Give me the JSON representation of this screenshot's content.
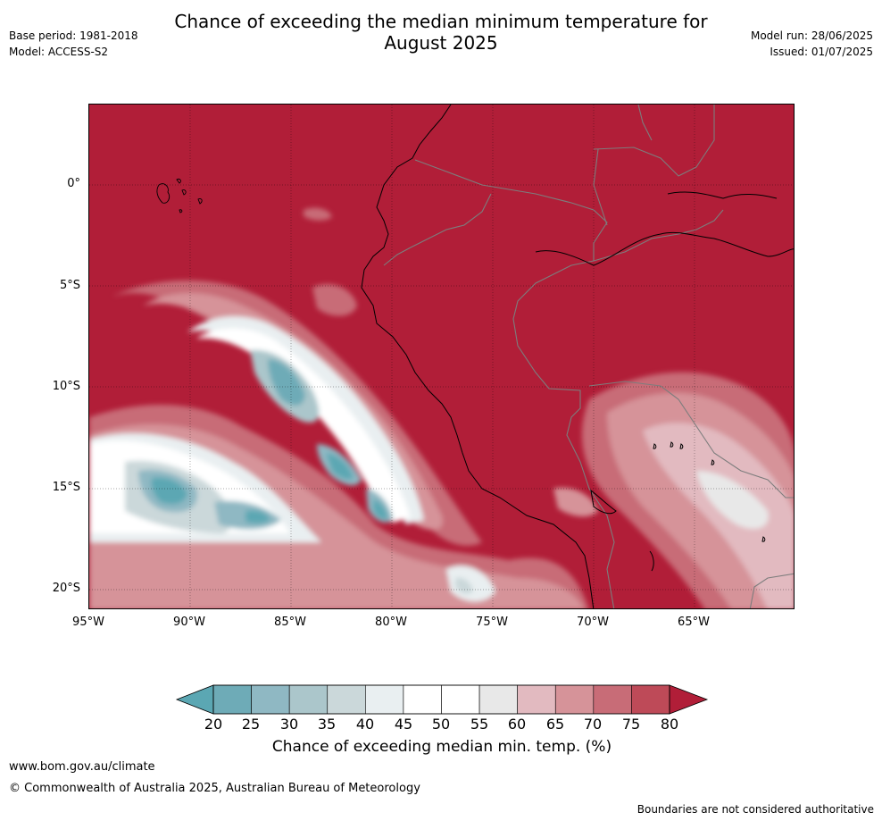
{
  "title_line1": "Chance of exceeding the median minimum temperature for",
  "title_line2": "August 2025",
  "meta": {
    "base_period": "Base period: 1981-2018",
    "model": "Model: ACCESS-S2",
    "model_run": "Model run: 28/06/2025",
    "issued": "Issued: 01/07/2025"
  },
  "map": {
    "lon_range": [
      -95,
      -60
    ],
    "lat_range": [
      -21,
      4
    ],
    "lat_ticks": [
      {
        "value": 0,
        "label": "0°"
      },
      {
        "value": -5,
        "label": "5°S"
      },
      {
        "value": -10,
        "label": "10°S"
      },
      {
        "value": -15,
        "label": "15°S"
      },
      {
        "value": -20,
        "label": "20°S"
      }
    ],
    "lon_ticks": [
      {
        "value": -95,
        "label": "95°W"
      },
      {
        "value": -90,
        "label": "90°W"
      },
      {
        "value": -85,
        "label": "85°W"
      },
      {
        "value": -80,
        "label": "80°W"
      },
      {
        "value": -75,
        "label": "75°W"
      },
      {
        "value": -70,
        "label": "70°W"
      },
      {
        "value": -65,
        "label": "65°W"
      }
    ],
    "grid": true
  },
  "colorbar": {
    "title": "Chance of exceeding median min. temp. (%)",
    "levels": [
      "20",
      "25",
      "30",
      "35",
      "40",
      "45",
      "50",
      "55",
      "60",
      "65",
      "70",
      "75",
      "80"
    ],
    "colors": [
      "#5ba7b3",
      "#6eabb7",
      "#8fb8c3",
      "#abc6cb",
      "#cbd8da",
      "#e9eff1",
      "#ffffff",
      "#ffffff",
      "#e8e8e8",
      "#e2bac0",
      "#d69399",
      "#c86c77",
      "#be4a58",
      "#b11e38"
    ]
  },
  "footer": {
    "url": "www.bom.gov.au/climate",
    "copyright": "© Commonwealth of Australia 2025, Australian Bureau of Meteorology",
    "disclaimer": "Boundaries are not considered authoritative"
  }
}
